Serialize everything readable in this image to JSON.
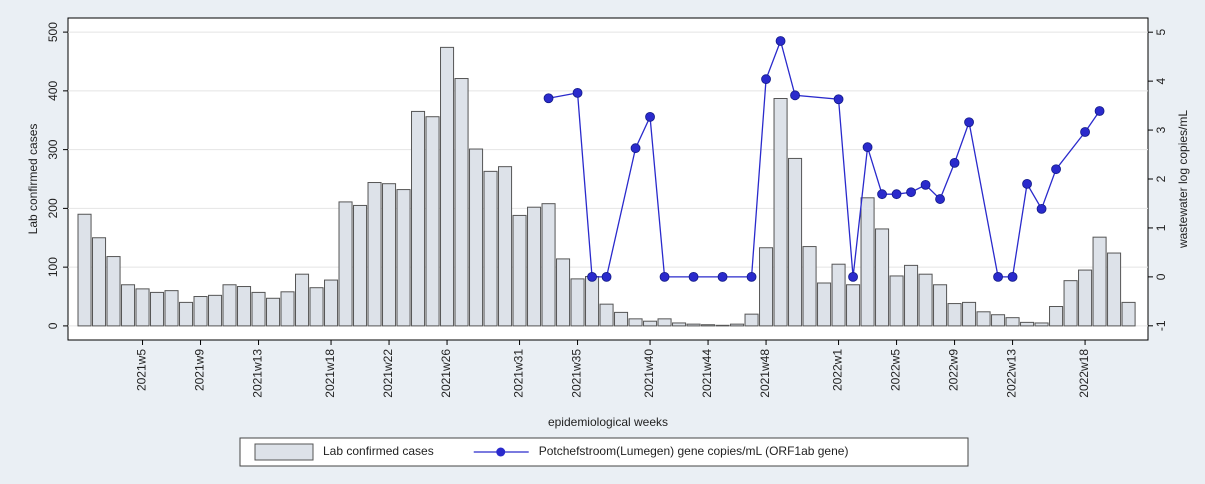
{
  "chart_data": {
    "type": "bar",
    "xlabel": "epidemiological weeks",
    "ylabel": "Lab confirmed cases",
    "y2label": "wastewater log copies/mL",
    "x": [
      1,
      2,
      3,
      4,
      5,
      6,
      7,
      8,
      9,
      10,
      11,
      12,
      13,
      14,
      15,
      16,
      17,
      18,
      19,
      20,
      21,
      22,
      23,
      24,
      25,
      26,
      27,
      28,
      29,
      30,
      31,
      32,
      33,
      34,
      35,
      36,
      37,
      38,
      39,
      40,
      41,
      42,
      43,
      44,
      45,
      46,
      47,
      48,
      49,
      50,
      51,
      52,
      53,
      54,
      55,
      56,
      57,
      58,
      59,
      60,
      61,
      62,
      63,
      64,
      65,
      66,
      67,
      68,
      69,
      70,
      71,
      72,
      73
    ],
    "series": [
      {
        "name": "Lab confirmed cases",
        "type": "bar",
        "color": "#dde2e9",
        "values": [
          190,
          150,
          118,
          70,
          63,
          57,
          60,
          40,
          50,
          52,
          70,
          67,
          57,
          47,
          58,
          88,
          65,
          78,
          211,
          205,
          244,
          242,
          232,
          365,
          356,
          474,
          421,
          301,
          263,
          271,
          188,
          202,
          208,
          114,
          80,
          84,
          37,
          23,
          12,
          8,
          12,
          5,
          3,
          2,
          1,
          3,
          20,
          133,
          387,
          285,
          135,
          73,
          105,
          70,
          218,
          165,
          85,
          103,
          88,
          70,
          38,
          40,
          24,
          19,
          14,
          6,
          5,
          33,
          77,
          95,
          151,
          124,
          40
        ]
      },
      {
        "name": "Potchefstroom(Lumegen) gene copies/mL (ORF1ab gene)",
        "type": "line",
        "axis": "y2",
        "color": "#2a2acc",
        "x": [
          33,
          35,
          36,
          37,
          39,
          40,
          41,
          43,
          45,
          47,
          48,
          49,
          50,
          53,
          54,
          55,
          56,
          57,
          58,
          59,
          60,
          61,
          62,
          64,
          65,
          66,
          67,
          68,
          70,
          71
        ],
        "values": [
          3.65,
          3.76,
          0,
          0,
          2.63,
          3.27,
          0,
          0,
          0,
          0,
          4.04,
          4.82,
          3.71,
          3.63,
          0,
          2.65,
          1.69,
          1.69,
          1.73,
          1.88,
          1.59,
          2.33,
          3.16,
          0,
          0,
          1.9,
          1.39,
          2.2,
          2.96,
          3.39
        ]
      }
    ],
    "xlim": [
      -0.14,
      74.34
    ],
    "xticks": [
      {
        "value": 5,
        "label": "2021w5"
      },
      {
        "value": 9,
        "label": "2021w9"
      },
      {
        "value": 13,
        "label": "2021w13"
      },
      {
        "value": 18,
        "label": "2021w18"
      },
      {
        "value": 22,
        "label": "2021w22"
      },
      {
        "value": 26,
        "label": "2021w26"
      },
      {
        "value": 31,
        "label": "2021w31"
      },
      {
        "value": 35,
        "label": "2021w35"
      },
      {
        "value": 40,
        "label": "2021w40"
      },
      {
        "value": 44,
        "label": "2021w44"
      },
      {
        "value": 48,
        "label": "2021w48"
      },
      {
        "value": 53,
        "label": "2022w1"
      },
      {
        "value": 57,
        "label": "2022w5"
      },
      {
        "value": 61,
        "label": "2022w9"
      },
      {
        "value": 65,
        "label": "2022w13"
      },
      {
        "value": 70,
        "label": "2022w18"
      }
    ],
    "ylim": [
      -24,
      524
    ],
    "yticks": [
      0,
      100,
      200,
      300,
      400,
      500
    ],
    "y2lim": [
      -1.29,
      5.29
    ],
    "y2ticks": [
      -1,
      0,
      1,
      2,
      3,
      4,
      5
    ],
    "grid": true,
    "legend": "bottom"
  }
}
